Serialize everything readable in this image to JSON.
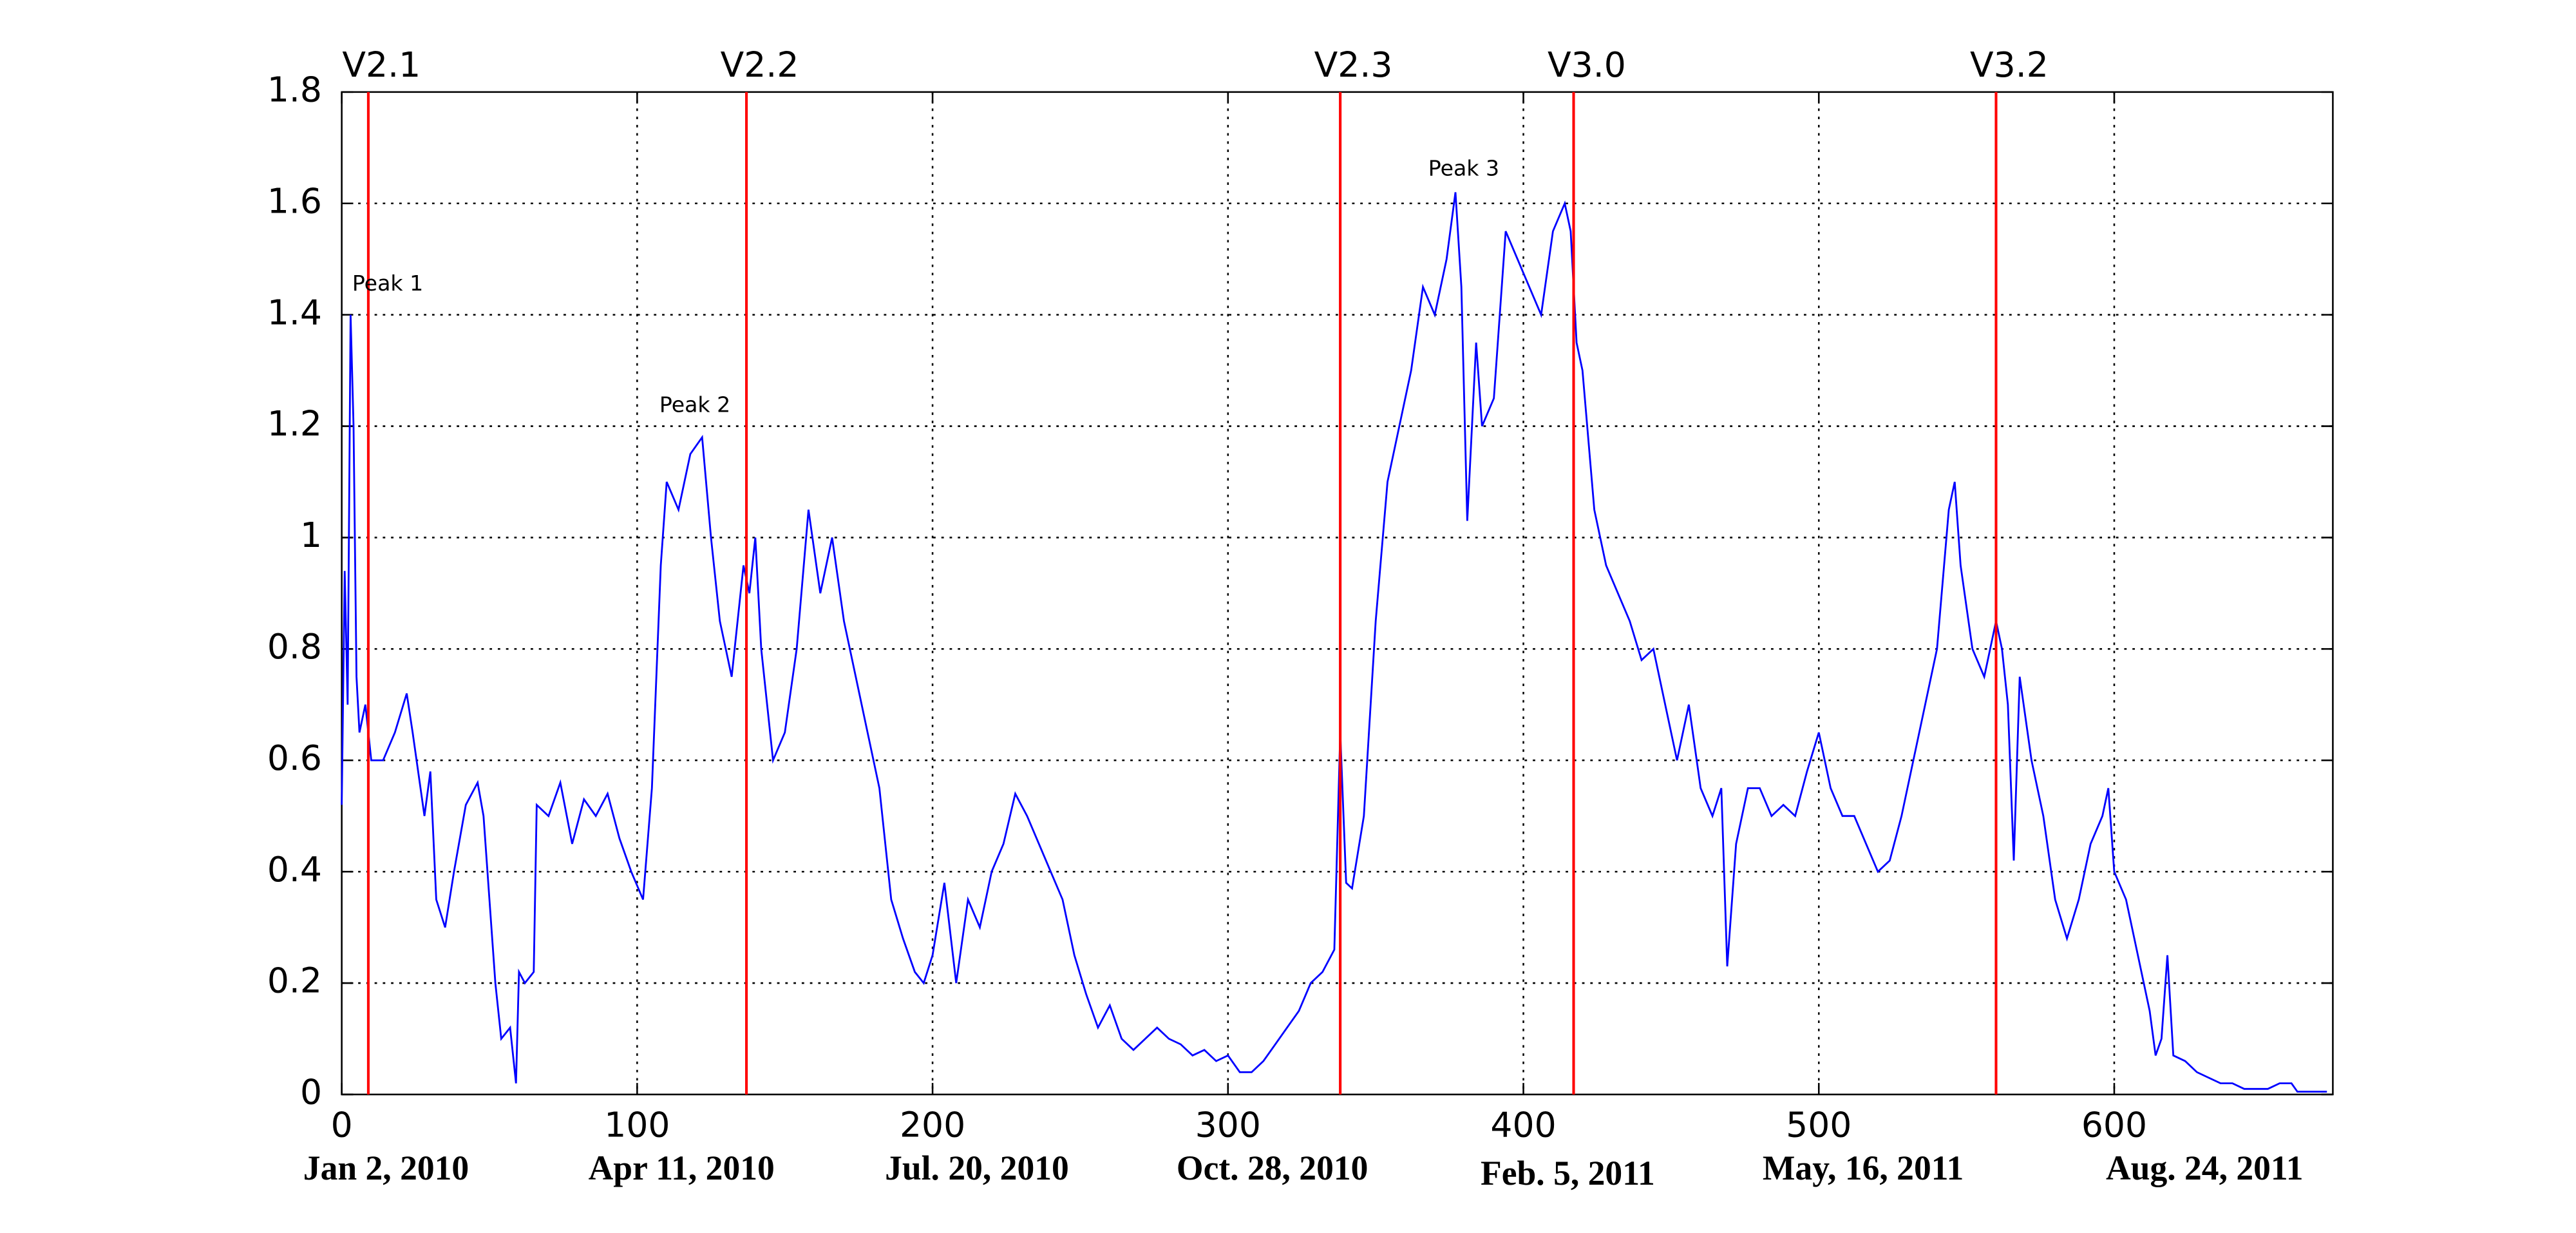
{
  "chart_data": {
    "type": "line",
    "x": [
      0,
      1,
      2,
      3,
      4,
      5,
      6,
      8,
      10,
      14,
      18,
      22,
      24,
      28,
      30,
      32,
      35,
      38,
      42,
      46,
      48,
      50,
      52,
      54,
      57,
      59,
      60,
      62,
      65,
      66,
      70,
      74,
      78,
      82,
      86,
      90,
      94,
      98,
      102,
      105,
      108,
      110,
      114,
      118,
      122,
      125,
      128,
      132,
      136,
      138,
      140,
      142,
      146,
      150,
      154,
      158,
      162,
      166,
      170,
      174,
      178,
      182,
      186,
      190,
      194,
      197,
      200,
      204,
      208,
      212,
      216,
      220,
      224,
      228,
      232,
      236,
      240,
      244,
      248,
      252,
      256,
      260,
      264,
      268,
      272,
      276,
      280,
      284,
      288,
      292,
      296,
      300,
      304,
      308,
      312,
      316,
      320,
      324,
      328,
      332,
      336,
      338,
      340,
      342,
      346,
      350,
      354,
      358,
      362,
      366,
      370,
      374,
      377,
      379,
      381,
      384,
      386,
      390,
      394,
      398,
      402,
      406,
      410,
      414,
      416,
      418,
      420,
      424,
      428,
      432,
      436,
      440,
      444,
      448,
      452,
      456,
      460,
      464,
      467,
      469,
      472,
      476,
      480,
      484,
      488,
      492,
      496,
      500,
      504,
      508,
      512,
      516,
      520,
      524,
      528,
      532,
      536,
      540,
      544,
      546,
      548,
      552,
      556,
      560,
      562,
      564,
      566,
      568,
      572,
      576,
      580,
      584,
      588,
      592,
      596,
      598,
      600,
      604,
      608,
      612,
      614,
      616,
      618,
      620,
      624,
      628,
      632,
      636,
      640,
      644,
      648,
      652,
      656,
      660,
      662,
      672
    ],
    "series": [
      {
        "color": "#0000ff",
        "values": [
          0.52,
          0.94,
          0.7,
          1.4,
          1.2,
          0.75,
          0.65,
          0.7,
          0.6,
          0.6,
          0.65,
          0.72,
          0.65,
          0.5,
          0.58,
          0.35,
          0.3,
          0.4,
          0.52,
          0.56,
          0.5,
          0.35,
          0.2,
          0.1,
          0.12,
          0.02,
          0.22,
          0.2,
          0.22,
          0.52,
          0.5,
          0.56,
          0.45,
          0.53,
          0.5,
          0.54,
          0.46,
          0.4,
          0.35,
          0.55,
          0.95,
          1.1,
          1.05,
          1.15,
          1.18,
          1.0,
          0.85,
          0.75,
          0.95,
          0.9,
          1.0,
          0.8,
          0.6,
          0.65,
          0.8,
          1.05,
          0.9,
          1.0,
          0.85,
          0.75,
          0.65,
          0.55,
          0.35,
          0.28,
          0.22,
          0.2,
          0.25,
          0.38,
          0.2,
          0.35,
          0.3,
          0.4,
          0.45,
          0.54,
          0.5,
          0.45,
          0.4,
          0.35,
          0.25,
          0.18,
          0.12,
          0.16,
          0.1,
          0.08,
          0.1,
          0.12,
          0.1,
          0.09,
          0.07,
          0.08,
          0.06,
          0.07,
          0.04,
          0.04,
          0.06,
          0.09,
          0.12,
          0.15,
          0.2,
          0.22,
          0.26,
          0.65,
          0.38,
          0.37,
          0.5,
          0.85,
          1.1,
          1.2,
          1.3,
          1.45,
          1.4,
          1.5,
          1.62,
          1.45,
          1.03,
          1.35,
          1.2,
          1.25,
          1.55,
          1.5,
          1.45,
          1.4,
          1.55,
          1.6,
          1.55,
          1.35,
          1.3,
          1.05,
          0.95,
          0.9,
          0.85,
          0.78,
          0.8,
          0.7,
          0.6,
          0.7,
          0.55,
          0.5,
          0.55,
          0.23,
          0.45,
          0.55,
          0.55,
          0.5,
          0.52,
          0.5,
          0.58,
          0.65,
          0.55,
          0.5,
          0.5,
          0.45,
          0.4,
          0.42,
          0.5,
          0.6,
          0.7,
          0.8,
          1.05,
          1.1,
          0.95,
          0.8,
          0.75,
          0.85,
          0.8,
          0.7,
          0.42,
          0.75,
          0.6,
          0.5,
          0.35,
          0.28,
          0.35,
          0.45,
          0.5,
          0.55,
          0.4,
          0.35,
          0.25,
          0.15,
          0.07,
          0.1,
          0.25,
          0.07,
          0.06,
          0.04,
          0.03,
          0.02,
          0.02,
          0.01,
          0.01,
          0.01,
          0.02,
          0.02,
          0.005,
          0.005
        ]
      }
    ],
    "xlim": [
      0,
      674
    ],
    "ylim": [
      0,
      1.8
    ],
    "xticks": [
      0,
      100,
      200,
      300,
      400,
      500,
      600
    ],
    "xtick_dates": [
      "Jan 2, 2010",
      "Apr 11, 2010",
      "Jul. 20, 2010",
      "Oct. 28, 2010",
      "Feb. 5, 2011",
      "May, 16, 2011",
      "Aug. 24, 2011"
    ],
    "yticks": [
      0,
      0.2,
      0.4,
      0.6,
      0.8,
      1,
      1.2,
      1.4,
      1.6,
      1.8
    ],
    "grid": true,
    "versions": [
      {
        "label": "V2.1",
        "x": 9,
        "color": "#ff0000"
      },
      {
        "label": "V2.2",
        "x": 137,
        "color": "#ff0000"
      },
      {
        "label": "V2.3",
        "x": 338,
        "color": "#ff0000"
      },
      {
        "label": "V3.0",
        "x": 417,
        "color": "#ff0000"
      },
      {
        "label": "V3.2",
        "x": 560,
        "color": "#ff0000"
      }
    ],
    "annotations": [
      "Peak 1",
      "Peak 2",
      "Peak 3"
    ]
  }
}
